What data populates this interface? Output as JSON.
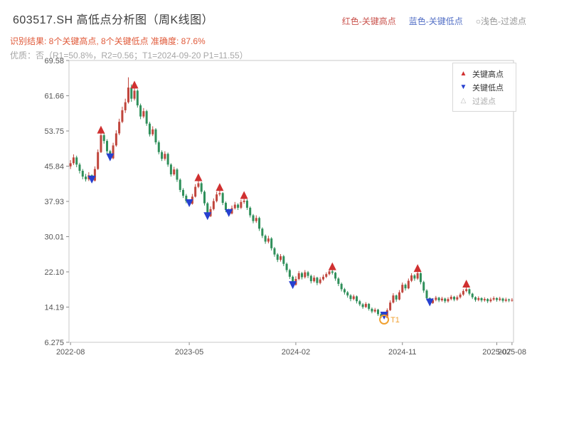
{
  "header": {
    "title": "603517.SH 高低点分析图（周K线图）",
    "legend_right": [
      {
        "label": "红色-关键高点",
        "color": "#c9524c"
      },
      {
        "label": "蓝色-关键低点",
        "color": "#5470c6"
      },
      {
        "label": "○浅色-过滤点",
        "color": "#999999"
      }
    ],
    "result_line": "识别结果: 8个关键高点, 8个关键低点  准确度: 87.6%",
    "result_color": "#e05a3a",
    "quality_line": "优质：否（R1=50.8%，R2=0.56；T1=2024-09-20 P1=11.55）",
    "quality_color": "#a6a6a6"
  },
  "legend_box": {
    "items": [
      {
        "label": "关键高点",
        "glyph": "▲",
        "color": "#d03030",
        "label_color": "#333333"
      },
      {
        "label": "关键低点",
        "glyph": "▼",
        "color": "#2740d0",
        "label_color": "#333333"
      },
      {
        "label": "过滤点",
        "glyph": "△",
        "color": "#bbbbbb",
        "label_color": "#aaaaaa"
      }
    ]
  },
  "chart_data": {
    "type": "candlestick",
    "title": "603517.SH 高低点分析图（周K线图）",
    "xlabel": "",
    "ylabel": "",
    "grid": false,
    "ylim": [
      6.275,
      69.58
    ],
    "y_ticks": [
      "69.58",
      "61.66",
      "53.75",
      "45.84",
      "37.93",
      "30.01",
      "22.10",
      "14.19",
      "6.275"
    ],
    "x_ticks": [
      {
        "pos": 0,
        "label": "2022-08"
      },
      {
        "pos": 39,
        "label": "2023-05"
      },
      {
        "pos": 74,
        "label": "2024-02"
      },
      {
        "pos": 109,
        "label": "2024-11"
      },
      {
        "pos": 140,
        "label": "2025-07"
      },
      {
        "pos": 145,
        "label": "2025-08"
      }
    ],
    "up_color": "#c0453c",
    "down_color": "#2f8f5a",
    "key_high_color": "#d03030",
    "key_low_color": "#2740d0",
    "candles": [
      [
        45.8,
        47.2,
        45.2,
        46.5
      ],
      [
        46.5,
        48.5,
        46.1,
        47.8
      ],
      [
        47.8,
        48.2,
        45.6,
        46.2
      ],
      [
        46.2,
        46.6,
        44.2,
        44.8
      ],
      [
        44.8,
        45.2,
        42.9,
        43.5
      ],
      [
        43.5,
        44.1,
        42.4,
        42.9
      ],
      [
        42.9,
        44.5,
        42.5,
        43.8
      ],
      [
        43.8,
        44.0,
        42.1,
        42.6
      ],
      [
        42.6,
        45.8,
        42.4,
        45.2
      ],
      [
        45.2,
        49.6,
        45.0,
        49.0
      ],
      [
        49.0,
        53.5,
        48.8,
        52.8
      ],
      [
        52.8,
        53.2,
        50.9,
        51.5
      ],
      [
        51.5,
        51.9,
        48.7,
        49.2
      ],
      [
        49.2,
        49.5,
        47.1,
        47.6
      ],
      [
        47.6,
        51.1,
        47.4,
        50.5
      ],
      [
        50.5,
        53.9,
        50.2,
        53.2
      ],
      [
        53.2,
        56.5,
        52.8,
        55.8
      ],
      [
        55.8,
        59.2,
        55.5,
        58.4
      ],
      [
        58.4,
        61.0,
        57.8,
        60.2
      ],
      [
        60.2,
        65.8,
        59.9,
        63.5
      ],
      [
        63.5,
        64.2,
        60.3,
        61.0
      ],
      [
        61.0,
        63.6,
        60.6,
        62.8
      ],
      [
        62.8,
        63.1,
        59.0,
        59.5
      ],
      [
        59.5,
        59.9,
        56.4,
        57.0
      ],
      [
        57.0,
        58.9,
        56.6,
        58.2
      ],
      [
        58.2,
        58.5,
        54.9,
        55.4
      ],
      [
        55.4,
        55.8,
        52.5,
        53.0
      ],
      [
        53.0,
        54.8,
        52.6,
        54.1
      ],
      [
        54.1,
        54.4,
        50.7,
        51.2
      ],
      [
        51.2,
        51.6,
        48.5,
        49.0
      ],
      [
        49.0,
        49.4,
        47.0,
        47.5
      ],
      [
        47.5,
        49.2,
        47.1,
        48.6
      ],
      [
        48.6,
        48.9,
        45.7,
        46.2
      ],
      [
        46.2,
        46.5,
        43.5,
        44.0
      ],
      [
        44.0,
        45.7,
        43.7,
        45.1
      ],
      [
        45.1,
        45.4,
        42.3,
        42.8
      ],
      [
        42.8,
        43.1,
        40.0,
        40.5
      ],
      [
        40.5,
        40.9,
        38.7,
        39.2
      ],
      [
        39.2,
        39.6,
        37.5,
        38.0
      ],
      [
        38.0,
        38.4,
        36.8,
        37.4
      ],
      [
        37.4,
        39.6,
        37.2,
        39.0
      ],
      [
        39.0,
        41.8,
        38.8,
        41.2
      ],
      [
        41.2,
        42.8,
        40.9,
        42.0
      ],
      [
        42.0,
        42.3,
        39.6,
        40.1
      ],
      [
        40.1,
        40.4,
        37.0,
        37.5
      ],
      [
        37.5,
        37.8,
        33.9,
        34.6
      ],
      [
        34.6,
        36.8,
        34.4,
        36.2
      ],
      [
        36.2,
        38.6,
        35.9,
        38.0
      ],
      [
        38.0,
        40.1,
        37.7,
        39.5
      ],
      [
        39.5,
        40.6,
        39.1,
        39.8
      ],
      [
        39.8,
        40.0,
        37.1,
        37.6
      ],
      [
        37.6,
        37.9,
        35.5,
        36.0
      ],
      [
        36.0,
        36.3,
        34.6,
        35.2
      ],
      [
        35.2,
        37.0,
        35.0,
        36.4
      ],
      [
        36.4,
        37.8,
        36.1,
        37.2
      ],
      [
        37.2,
        37.5,
        36.0,
        36.5
      ],
      [
        36.5,
        38.3,
        36.2,
        37.8
      ],
      [
        37.8,
        38.8,
        37.4,
        38.1
      ],
      [
        38.1,
        38.4,
        36.0,
        36.5
      ],
      [
        36.5,
        36.8,
        34.3,
        34.8
      ],
      [
        34.8,
        35.1,
        33.0,
        33.5
      ],
      [
        33.5,
        34.8,
        33.1,
        34.2
      ],
      [
        34.2,
        34.5,
        31.3,
        31.8
      ],
      [
        31.8,
        32.1,
        29.7,
        30.2
      ],
      [
        30.2,
        30.5,
        28.4,
        28.9
      ],
      [
        28.9,
        30.2,
        28.5,
        29.6
      ],
      [
        29.6,
        29.9,
        26.9,
        27.4
      ],
      [
        27.4,
        27.7,
        25.5,
        26.0
      ],
      [
        26.0,
        26.3,
        24.3,
        24.8
      ],
      [
        24.8,
        26.1,
        24.4,
        25.6
      ],
      [
        25.6,
        25.9,
        23.4,
        23.9
      ],
      [
        23.9,
        24.2,
        22.0,
        22.5
      ],
      [
        22.5,
        22.8,
        20.5,
        21.0
      ],
      [
        21.0,
        21.3,
        18.4,
        19.2
      ],
      [
        19.2,
        21.1,
        19.0,
        20.5
      ],
      [
        20.5,
        22.3,
        20.2,
        21.8
      ],
      [
        21.8,
        22.1,
        20.4,
        20.9
      ],
      [
        20.9,
        22.5,
        20.6,
        22.0
      ],
      [
        22.0,
        22.3,
        20.7,
        21.2
      ],
      [
        21.2,
        21.5,
        19.5,
        20.0
      ],
      [
        20.0,
        21.3,
        19.7,
        20.8
      ],
      [
        20.8,
        21.0,
        19.1,
        19.6
      ],
      [
        19.6,
        20.9,
        19.3,
        20.4
      ],
      [
        20.4,
        21.5,
        20.1,
        21.0
      ],
      [
        21.0,
        22.0,
        20.7,
        21.6
      ],
      [
        21.6,
        22.6,
        21.3,
        22.2
      ],
      [
        22.2,
        22.8,
        21.5,
        21.9
      ],
      [
        21.9,
        22.1,
        20.1,
        20.6
      ],
      [
        20.6,
        20.9,
        18.9,
        19.4
      ],
      [
        19.4,
        19.7,
        17.7,
        18.2
      ],
      [
        18.2,
        18.5,
        17.0,
        17.5
      ],
      [
        17.5,
        17.8,
        16.3,
        16.8
      ],
      [
        16.8,
        17.1,
        15.5,
        16.0
      ],
      [
        16.0,
        17.0,
        15.7,
        16.6
      ],
      [
        16.6,
        16.8,
        15.0,
        15.5
      ],
      [
        15.5,
        15.8,
        14.4,
        14.8
      ],
      [
        14.8,
        15.1,
        13.8,
        14.2
      ],
      [
        14.2,
        15.3,
        14.0,
        14.9
      ],
      [
        14.9,
        15.1,
        13.4,
        13.8
      ],
      [
        13.8,
        14.1,
        12.8,
        13.2
      ],
      [
        13.2,
        14.0,
        12.9,
        13.6
      ],
      [
        13.6,
        13.8,
        12.2,
        12.6
      ],
      [
        12.6,
        12.9,
        11.7,
        12.0
      ],
      [
        12.0,
        12.4,
        11.55,
        11.8
      ],
      [
        11.8,
        13.9,
        11.7,
        13.5
      ],
      [
        13.5,
        15.7,
        13.3,
        15.2
      ],
      [
        15.2,
        17.3,
        15.0,
        16.8
      ],
      [
        16.8,
        17.0,
        15.4,
        15.9
      ],
      [
        15.9,
        18.0,
        15.7,
        17.5
      ],
      [
        17.5,
        19.7,
        17.3,
        19.2
      ],
      [
        19.2,
        19.5,
        17.9,
        18.4
      ],
      [
        18.4,
        20.6,
        18.2,
        20.1
      ],
      [
        20.1,
        21.8,
        19.8,
        21.3
      ],
      [
        21.3,
        21.6,
        20.1,
        20.6
      ],
      [
        20.6,
        22.4,
        20.3,
        21.8
      ],
      [
        21.8,
        22.0,
        19.3,
        19.8
      ],
      [
        19.8,
        20.1,
        17.4,
        17.9
      ],
      [
        17.9,
        18.2,
        15.7,
        16.2
      ],
      [
        16.2,
        16.4,
        14.5,
        15.1
      ],
      [
        15.1,
        16.2,
        14.9,
        15.8
      ],
      [
        15.8,
        16.7,
        15.5,
        16.3
      ],
      [
        16.3,
        16.5,
        15.3,
        15.7
      ],
      [
        15.7,
        16.5,
        15.4,
        16.1
      ],
      [
        16.1,
        16.3,
        15.1,
        15.5
      ],
      [
        15.5,
        16.4,
        15.2,
        16.0
      ],
      [
        16.0,
        16.9,
        15.7,
        16.5
      ],
      [
        16.5,
        16.7,
        15.5,
        15.9
      ],
      [
        15.9,
        16.8,
        15.6,
        16.4
      ],
      [
        16.4,
        17.4,
        16.1,
        17.0
      ],
      [
        17.0,
        18.2,
        16.7,
        17.8
      ],
      [
        17.8,
        18.9,
        17.5,
        18.2
      ],
      [
        18.2,
        18.4,
        16.8,
        17.2
      ],
      [
        17.2,
        17.4,
        16.0,
        16.4
      ],
      [
        16.4,
        16.6,
        15.4,
        15.8
      ],
      [
        15.8,
        16.6,
        15.5,
        16.2
      ],
      [
        16.2,
        16.4,
        15.3,
        15.7
      ],
      [
        15.7,
        16.4,
        15.4,
        16.0
      ],
      [
        16.0,
        16.2,
        15.1,
        15.5
      ],
      [
        15.5,
        16.3,
        15.2,
        15.9
      ],
      [
        15.9,
        16.6,
        15.6,
        16.2
      ],
      [
        16.2,
        16.4,
        15.4,
        15.8
      ],
      [
        15.8,
        16.5,
        15.5,
        16.1
      ],
      [
        16.1,
        16.3,
        15.2,
        15.6
      ],
      [
        15.6,
        16.3,
        15.3,
        15.9
      ],
      [
        15.9,
        16.1,
        15.3,
        15.7
      ],
      [
        15.7,
        16.2,
        15.4,
        15.8
      ]
    ],
    "key_highs": [
      {
        "week": 10,
        "price": 53.5
      },
      {
        "week": 21,
        "price": 63.6
      },
      {
        "week": 42,
        "price": 42.8
      },
      {
        "week": 49,
        "price": 40.6
      },
      {
        "week": 57,
        "price": 38.8
      },
      {
        "week": 86,
        "price": 22.8
      },
      {
        "week": 114,
        "price": 22.4
      },
      {
        "week": 130,
        "price": 18.9
      }
    ],
    "key_lows": [
      {
        "week": 7,
        "price": 42.1
      },
      {
        "week": 13,
        "price": 47.1
      },
      {
        "week": 39,
        "price": 36.8
      },
      {
        "week": 45,
        "price": 33.9
      },
      {
        "week": 52,
        "price": 34.6
      },
      {
        "week": 73,
        "price": 18.4
      },
      {
        "week": 103,
        "price": 11.55
      },
      {
        "week": 118,
        "price": 14.5
      }
    ],
    "t1_annotation": {
      "week": 103,
      "price": 11.55,
      "label": "T1",
      "color": "#f0a030"
    }
  }
}
